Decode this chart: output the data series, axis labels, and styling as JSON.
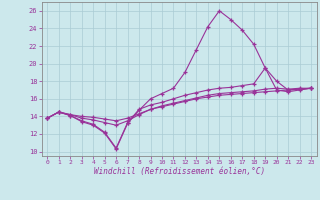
{
  "xlabel": "Windchill (Refroidissement éolien,°C)",
  "xlim": [
    -0.5,
    23.5
  ],
  "ylim": [
    9.5,
    27.0
  ],
  "xticks": [
    0,
    1,
    2,
    3,
    4,
    5,
    6,
    7,
    8,
    9,
    10,
    11,
    12,
    13,
    14,
    15,
    16,
    17,
    18,
    19,
    20,
    21,
    22,
    23
  ],
  "yticks": [
    10,
    12,
    14,
    16,
    18,
    20,
    22,
    24,
    26
  ],
  "background_color": "#cce8ec",
  "line_color": "#993399",
  "grid_color": "#aaccd4",
  "line1_x": [
    0,
    1,
    2,
    3,
    4,
    5,
    6,
    7,
    8,
    9,
    10,
    11,
    12,
    13,
    14,
    15,
    16,
    17,
    18,
    19,
    20,
    21,
    22,
    23
  ],
  "line1_y": [
    13.8,
    14.5,
    14.1,
    13.4,
    13.0,
    12.1,
    10.3,
    13.2,
    14.7,
    16.0,
    16.6,
    17.2,
    19.0,
    21.6,
    24.2,
    26.0,
    25.0,
    23.8,
    22.2,
    19.5,
    17.0,
    16.8,
    17.0,
    17.2
  ],
  "line2_x": [
    0,
    1,
    2,
    3,
    4,
    5,
    6,
    7,
    8,
    9,
    10,
    11,
    12,
    13,
    14,
    15,
    16,
    17,
    18,
    19,
    20,
    21,
    22,
    23
  ],
  "line2_y": [
    13.8,
    14.5,
    14.1,
    13.5,
    13.1,
    12.2,
    10.4,
    13.3,
    14.8,
    15.3,
    15.6,
    16.0,
    16.4,
    16.7,
    17.0,
    17.2,
    17.3,
    17.5,
    17.7,
    19.5,
    18.0,
    17.0,
    17.1,
    17.2
  ],
  "line3_x": [
    0,
    1,
    2,
    3,
    4,
    5,
    6,
    7,
    8,
    9,
    10,
    11,
    12,
    13,
    14,
    15,
    16,
    17,
    18,
    19,
    20,
    21,
    22,
    23
  ],
  "line3_y": [
    13.8,
    14.5,
    14.2,
    13.8,
    13.6,
    13.3,
    13.0,
    13.5,
    14.2,
    14.8,
    15.2,
    15.5,
    15.8,
    16.1,
    16.4,
    16.6,
    16.7,
    16.8,
    16.9,
    17.1,
    17.2,
    17.1,
    17.2,
    17.2
  ],
  "line4_x": [
    0,
    1,
    2,
    3,
    4,
    5,
    6,
    7,
    8,
    9,
    10,
    11,
    12,
    13,
    14,
    15,
    16,
    17,
    18,
    19,
    20,
    21,
    22,
    23
  ],
  "line4_y": [
    13.8,
    14.5,
    14.2,
    14.0,
    13.9,
    13.7,
    13.5,
    13.8,
    14.3,
    14.8,
    15.1,
    15.4,
    15.7,
    16.0,
    16.2,
    16.4,
    16.5,
    16.6,
    16.7,
    16.8,
    16.9,
    17.0,
    17.1,
    17.2
  ]
}
